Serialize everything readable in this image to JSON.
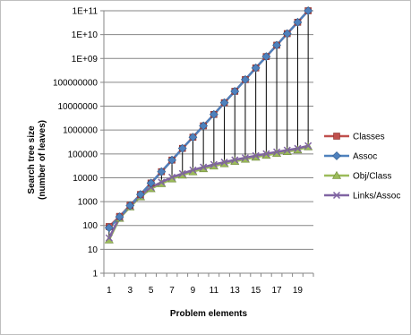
{
  "chart_data": {
    "type": "line",
    "xlabel": "Problem elements",
    "ylabel_lines": [
      "Search tree size",
      "(number of leaves)"
    ],
    "y_scale": "log",
    "ylim": [
      1,
      100000000000
    ],
    "y_tick_labels": [
      "1",
      "10",
      "100",
      "1000",
      "10000",
      "100000",
      "1000000",
      "10000000",
      "100000000",
      "1E+09",
      "1E+10",
      "1E+11"
    ],
    "x": [
      1,
      2,
      3,
      4,
      5,
      6,
      7,
      8,
      9,
      10,
      11,
      12,
      13,
      14,
      15,
      16,
      17,
      18,
      19,
      20
    ],
    "x_tick_labels": [
      "1",
      "3",
      "5",
      "7",
      "9",
      "11",
      "13",
      "15",
      "17",
      "19"
    ],
    "x_tick_values": [
      1,
      3,
      5,
      7,
      9,
      11,
      13,
      15,
      17,
      19
    ],
    "grid": "horizontal",
    "drop_lines": true,
    "legend_position": "right",
    "series": [
      {
        "name": "Classes",
        "color": "#c0504d",
        "marker": "square",
        "values": [
          90,
          240,
          700,
          2000,
          6000,
          18000,
          55000,
          170000,
          500000,
          1500000,
          4500000,
          14000000,
          42000000,
          130000000,
          400000000,
          1200000000,
          3600000000,
          11000000000,
          33000000000,
          100000000000
        ]
      },
      {
        "name": "Assoc",
        "color": "#4f81bd",
        "marker": "diamond",
        "values": [
          80,
          230,
          680,
          2000,
          6000,
          18000,
          55000,
          170000,
          500000,
          1500000,
          4500000,
          14000000,
          42000000,
          130000000,
          400000000,
          1200000000,
          3600000000,
          11000000000,
          33000000000,
          100000000000
        ]
      },
      {
        "name": "Obj/Class",
        "color": "#9bbb59",
        "marker": "triangle",
        "values": [
          25,
          200,
          600,
          1600,
          3500,
          5700,
          9000,
          13000,
          18000,
          24000,
          31000,
          39000,
          49000,
          60000,
          73000,
          88000,
          105000,
          125000,
          148000,
          200000
        ]
      },
      {
        "name": "Links/Assoc",
        "color": "#8064a2",
        "marker": "x",
        "values": [
          30,
          220,
          650,
          1800,
          4000,
          6500,
          10500,
          15000,
          21000,
          28000,
          36000,
          45000,
          56000,
          69000,
          84000,
          101000,
          121000,
          144000,
          170000,
          220000
        ]
      }
    ]
  }
}
